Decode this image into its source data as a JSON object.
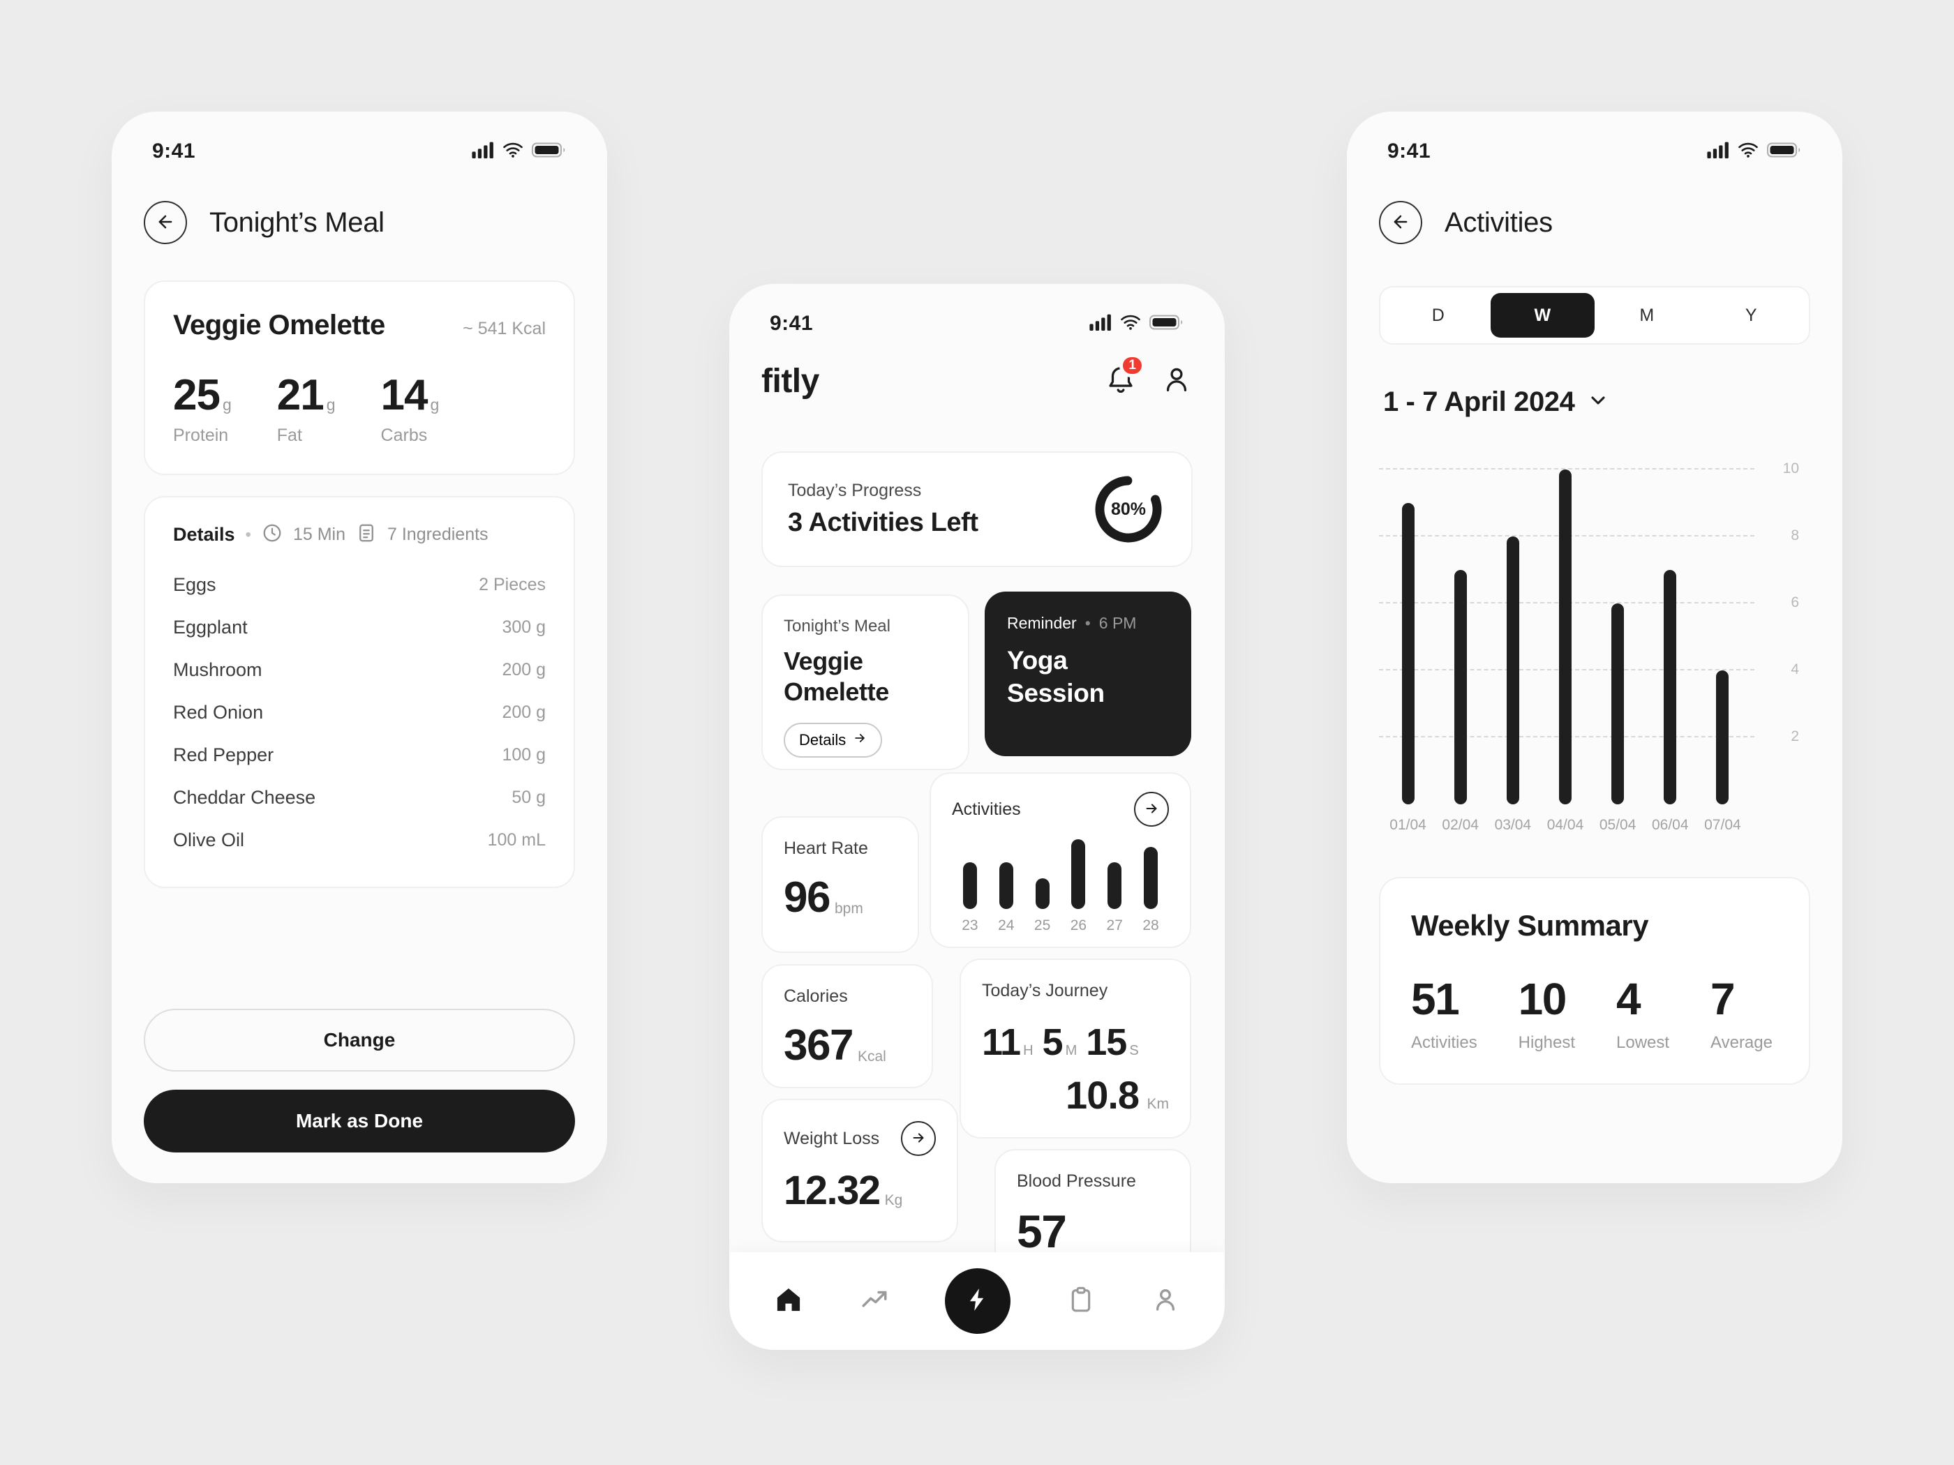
{
  "colors": {
    "page_background": "#ECECEC",
    "phone_background": "#FBFBFB",
    "card_background": "#FFFFFF",
    "card_border": "#EFEFEF",
    "dark": "#1C1C1C",
    "muted_text": "#9A9A9A",
    "badge_red": "#F03B30"
  },
  "ui": {
    "dot": "•"
  },
  "status_bar": {
    "time": "9:41"
  },
  "meal_screen": {
    "title": "Tonight’s Meal",
    "meal_card": {
      "name": "Veggie Omelette",
      "kcal": "~ 541 Kcal",
      "macros": [
        {
          "value": "25",
          "unit": "g",
          "label": "Protein"
        },
        {
          "value": "21",
          "unit": "g",
          "label": "Fat"
        },
        {
          "value": "14",
          "unit": "g",
          "label": "Carbs"
        }
      ]
    },
    "details": {
      "label": "Details",
      "time": "15 Min",
      "ingredients_count": "7 Ingredients",
      "ingredients": [
        {
          "name": "Eggs",
          "amount": "2 Pieces"
        },
        {
          "name": "Eggplant",
          "amount": "300 g"
        },
        {
          "name": "Mushroom",
          "amount": "200 g"
        },
        {
          "name": "Red Onion",
          "amount": "200 g"
        },
        {
          "name": "Red Pepper",
          "amount": "100 g"
        },
        {
          "name": "Cheddar Cheese",
          "amount": "50 g"
        },
        {
          "name": "Olive Oil",
          "amount": "100 mL"
        }
      ]
    },
    "change_button": "Change",
    "done_button": "Mark as Done"
  },
  "home_screen": {
    "logo": "fitly",
    "notification_count": "1",
    "progress_card": {
      "title": "Today’s Progress",
      "subtitle": "3 Activities Left",
      "percent_label": "80%",
      "percent_value": 80
    },
    "meal_card": {
      "label": "Tonight’s Meal",
      "name": "Veggie Omelette",
      "details_label": "Details"
    },
    "reminder_card": {
      "label": "Reminder",
      "time": "6 PM",
      "title": "Yoga Session"
    },
    "activities_card": {
      "title": "Activities"
    },
    "heart_rate": {
      "label": "Heart Rate",
      "value": "96",
      "unit": "bpm"
    },
    "calories": {
      "label": "Calories",
      "value": "367",
      "unit": "Kcal"
    },
    "journey": {
      "label": "Today’s Journey",
      "time_parts": [
        {
          "value": "11",
          "unit": "H"
        },
        {
          "value": "5",
          "unit": "M"
        },
        {
          "value": "15",
          "unit": "S"
        }
      ],
      "distance": "10.8",
      "distance_unit": "Km"
    },
    "weight_loss": {
      "label": "Weight Loss",
      "value": "12.32",
      "unit": "Kg"
    },
    "blood_pressure": {
      "label": "Blood Pressure",
      "value": "57"
    }
  },
  "activities_screen": {
    "title": "Activities",
    "tabs": [
      "D",
      "W",
      "M",
      "Y"
    ],
    "selected_tab": "W",
    "date_range": "1 - 7 April 2024",
    "weekly_summary": {
      "title": "Weekly Summary",
      "stats": [
        {
          "value": "51",
          "label": "Activities"
        },
        {
          "value": "10",
          "label": "Highest"
        },
        {
          "value": "4",
          "label": "Lowest"
        },
        {
          "value": "7",
          "label": "Average"
        }
      ]
    }
  },
  "chart_data": [
    {
      "id": "home-activities-mini-bar",
      "type": "bar",
      "title": "Activities",
      "categories": [
        "23",
        "24",
        "25",
        "26",
        "27",
        "28"
      ],
      "values": [
        6,
        6,
        4,
        9,
        6,
        8
      ],
      "ylim": [
        0,
        9
      ],
      "grid": false,
      "bar_color": "#1F1F1F"
    },
    {
      "id": "weekly-activities-bar",
      "type": "bar",
      "title": "Activities · 1 - 7 April 2024",
      "categories": [
        "01/04",
        "02/04",
        "03/04",
        "04/04",
        "05/04",
        "06/04",
        "07/04"
      ],
      "values": [
        9,
        7,
        8,
        10,
        6,
        7,
        4
      ],
      "ylim": [
        0,
        10
      ],
      "yticks": [
        2,
        4,
        6,
        8,
        10
      ],
      "grid": "horizontal-dashed",
      "axis_side": "right",
      "legend": "none",
      "bar_color": "#1F1F1F"
    }
  ]
}
